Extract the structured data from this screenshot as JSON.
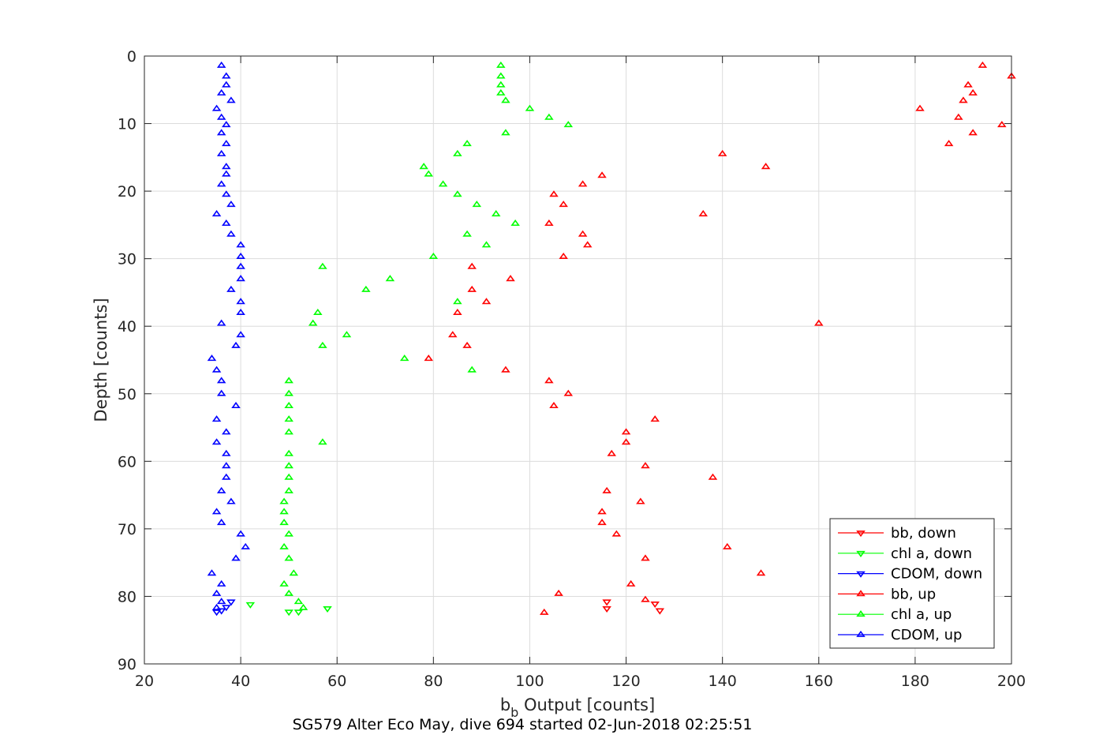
{
  "chart_data": {
    "type": "scatter",
    "xlabel_main": "b",
    "xlabel_sub": "b",
    "xlabel_rest": " Output [counts]",
    "ylabel": "Depth [counts]",
    "caption": "SG579 Alter Eco May, dive 694 started 02-Jun-2018 02:25:51",
    "xlim": [
      20,
      200
    ],
    "ylim": [
      0,
      90
    ],
    "y_reversed": true,
    "grid": true,
    "x_ticks": [
      20,
      40,
      60,
      80,
      100,
      120,
      140,
      160,
      180,
      200
    ],
    "y_ticks": [
      0,
      10,
      20,
      30,
      40,
      50,
      60,
      70,
      80,
      90
    ],
    "legend_position": "bottom-right",
    "series": [
      {
        "name": "bb, down",
        "color": "#ff0000",
        "marker": "triangle-down",
        "points": [
          [
            116,
            80.8
          ],
          [
            126,
            81.1
          ],
          [
            116,
            81.8
          ],
          [
            127,
            82.1
          ]
        ]
      },
      {
        "name": "chl a, down",
        "color": "#00ff00",
        "marker": "triangle-down",
        "points": [
          [
            42,
            81.2
          ],
          [
            58,
            81.8
          ],
          [
            52,
            82.3
          ],
          [
            50,
            82.3
          ]
        ]
      },
      {
        "name": "CDOM, down",
        "color": "#0000ff",
        "marker": "triangle-down",
        "points": [
          [
            38,
            80.8
          ],
          [
            37,
            81.6
          ],
          [
            36,
            82.1
          ],
          [
            35,
            82.3
          ]
        ]
      },
      {
        "name": "bb, up",
        "color": "#ff0000",
        "marker": "triangle-up",
        "points": [
          [
            194,
            1.4
          ],
          [
            200,
            3.0
          ],
          [
            191,
            4.3
          ],
          [
            192,
            5.5
          ],
          [
            190,
            6.6
          ],
          [
            181,
            7.8
          ],
          [
            189,
            9.1
          ],
          [
            198,
            10.2
          ],
          [
            192,
            11.4
          ],
          [
            187,
            13.0
          ],
          [
            140,
            14.5
          ],
          [
            149,
            16.4
          ],
          [
            115,
            17.7
          ],
          [
            111,
            19.0
          ],
          [
            105,
            20.5
          ],
          [
            107,
            22.0
          ],
          [
            136,
            23.4
          ],
          [
            104,
            24.8
          ],
          [
            111,
            26.4
          ],
          [
            112,
            28.0
          ],
          [
            107,
            29.7
          ],
          [
            88,
            31.2
          ],
          [
            96,
            33.0
          ],
          [
            88,
            34.6
          ],
          [
            91,
            36.4
          ],
          [
            85,
            38.0
          ],
          [
            160,
            39.6
          ],
          [
            84,
            41.3
          ],
          [
            87,
            42.9
          ],
          [
            79,
            44.8
          ],
          [
            95,
            46.5
          ],
          [
            104,
            48.1
          ],
          [
            108,
            50.0
          ],
          [
            105,
            51.8
          ],
          [
            126,
            53.8
          ],
          [
            120,
            55.7
          ],
          [
            120,
            57.2
          ],
          [
            117,
            58.9
          ],
          [
            124,
            60.7
          ],
          [
            138,
            62.4
          ],
          [
            116,
            64.4
          ],
          [
            123,
            66.0
          ],
          [
            115,
            67.5
          ],
          [
            115,
            69.1
          ],
          [
            118,
            70.8
          ],
          [
            141,
            72.7
          ],
          [
            124,
            74.4
          ],
          [
            148,
            76.6
          ],
          [
            121,
            78.2
          ],
          [
            106,
            79.6
          ],
          [
            124,
            80.5
          ],
          [
            103,
            82.4
          ]
        ]
      },
      {
        "name": "chl a, up",
        "color": "#00ff00",
        "marker": "triangle-up",
        "points": [
          [
            94,
            1.4
          ],
          [
            94,
            3.0
          ],
          [
            94,
            4.3
          ],
          [
            94,
            5.5
          ],
          [
            95,
            6.6
          ],
          [
            100,
            7.8
          ],
          [
            104,
            9.1
          ],
          [
            108,
            10.2
          ],
          [
            95,
            11.4
          ],
          [
            87,
            13.0
          ],
          [
            85,
            14.5
          ],
          [
            78,
            16.4
          ],
          [
            79,
            17.5
          ],
          [
            82,
            19.0
          ],
          [
            85,
            20.5
          ],
          [
            89,
            22.0
          ],
          [
            93,
            23.4
          ],
          [
            97,
            24.8
          ],
          [
            87,
            26.4
          ],
          [
            91,
            28.0
          ],
          [
            80,
            29.7
          ],
          [
            57,
            31.2
          ],
          [
            71,
            33.0
          ],
          [
            66,
            34.6
          ],
          [
            85,
            36.4
          ],
          [
            56,
            38.0
          ],
          [
            55,
            39.6
          ],
          [
            62,
            41.3
          ],
          [
            57,
            42.9
          ],
          [
            74,
            44.8
          ],
          [
            88,
            46.5
          ],
          [
            50,
            48.1
          ],
          [
            50,
            50.0
          ],
          [
            50,
            51.8
          ],
          [
            50,
            53.8
          ],
          [
            50,
            55.7
          ],
          [
            57,
            57.2
          ],
          [
            50,
            58.9
          ],
          [
            50,
            60.7
          ],
          [
            50,
            62.4
          ],
          [
            50,
            64.4
          ],
          [
            49,
            66.0
          ],
          [
            49,
            67.5
          ],
          [
            49,
            69.1
          ],
          [
            50,
            70.8
          ],
          [
            49,
            72.7
          ],
          [
            50,
            74.4
          ],
          [
            51,
            76.6
          ],
          [
            49,
            78.2
          ],
          [
            50,
            79.6
          ],
          [
            52,
            80.8
          ],
          [
            53,
            81.7
          ]
        ]
      },
      {
        "name": "CDOM, up",
        "color": "#0000ff",
        "marker": "triangle-up",
        "points": [
          [
            36,
            1.4
          ],
          [
            37,
            3.0
          ],
          [
            37,
            4.3
          ],
          [
            36,
            5.5
          ],
          [
            38,
            6.6
          ],
          [
            35,
            7.8
          ],
          [
            36,
            9.1
          ],
          [
            37,
            10.2
          ],
          [
            36,
            11.4
          ],
          [
            37,
            13.0
          ],
          [
            36,
            14.5
          ],
          [
            37,
            16.4
          ],
          [
            37,
            17.5
          ],
          [
            36,
            19.0
          ],
          [
            37,
            20.5
          ],
          [
            38,
            22.0
          ],
          [
            35,
            23.4
          ],
          [
            37,
            24.8
          ],
          [
            38,
            26.4
          ],
          [
            40,
            28.0
          ],
          [
            40,
            29.7
          ],
          [
            40,
            31.2
          ],
          [
            40,
            33.0
          ],
          [
            38,
            34.6
          ],
          [
            40,
            36.4
          ],
          [
            40,
            38.0
          ],
          [
            36,
            39.6
          ],
          [
            40,
            41.3
          ],
          [
            39,
            42.9
          ],
          [
            34,
            44.8
          ],
          [
            35,
            46.5
          ],
          [
            36,
            48.1
          ],
          [
            36,
            50.0
          ],
          [
            39,
            51.8
          ],
          [
            35,
            53.8
          ],
          [
            37,
            55.7
          ],
          [
            35,
            57.2
          ],
          [
            37,
            58.9
          ],
          [
            37,
            60.7
          ],
          [
            37,
            62.4
          ],
          [
            36,
            64.4
          ],
          [
            38,
            66.0
          ],
          [
            35,
            67.5
          ],
          [
            36,
            69.1
          ],
          [
            40,
            70.8
          ],
          [
            41,
            72.7
          ],
          [
            39,
            74.4
          ],
          [
            34,
            76.6
          ],
          [
            36,
            78.2
          ],
          [
            35,
            79.6
          ],
          [
            36,
            80.8
          ],
          [
            35,
            81.7
          ]
        ]
      }
    ]
  }
}
